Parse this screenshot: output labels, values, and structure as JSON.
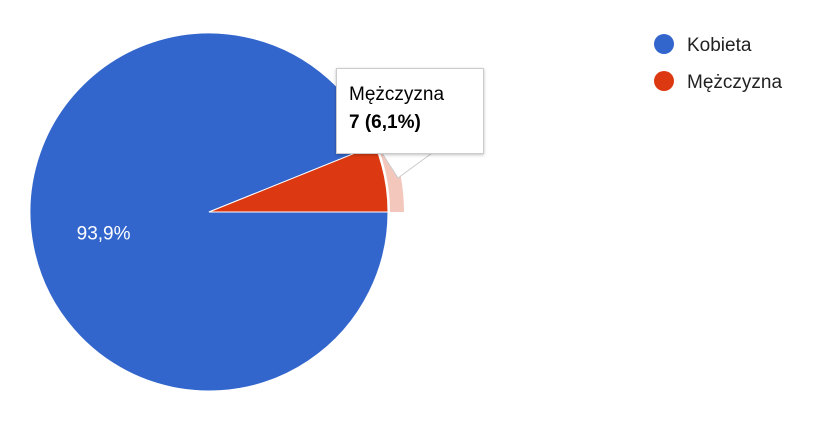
{
  "chart_data": {
    "type": "pie",
    "title": "",
    "categories": [
      "Kobieta",
      "Mężczyzna"
    ],
    "values": [
      93.9,
      6.1
    ],
    "slice_labels": [
      "93,9%",
      ""
    ],
    "colors": [
      "#3366cc",
      "#dc3912"
    ],
    "highlight_color": "#f4c7bd",
    "highlighted_index": 1,
    "legend": {
      "position": "right",
      "items": [
        {
          "label": "Kobieta",
          "color": "#3366cc"
        },
        {
          "label": "Mężczyzna",
          "color": "#dc3912"
        }
      ]
    }
  },
  "tooltip": {
    "title": "Mężczyzna",
    "value": "7 (6,1%)"
  }
}
